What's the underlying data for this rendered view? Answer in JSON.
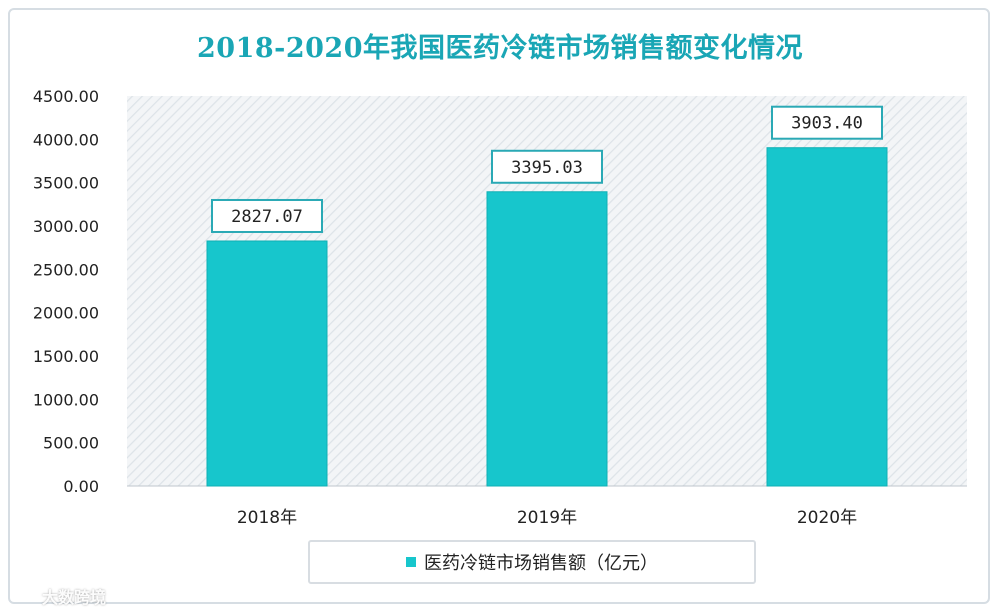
{
  "chart_data": {
    "type": "bar",
    "title": "2018-2020年我国医药冷链市场销售额变化情况",
    "categories": [
      "2018年",
      "2019年",
      "2020年"
    ],
    "series": [
      {
        "name": "医药冷链市场销售额（亿元）",
        "values": [
          2827.07,
          3395.03,
          3903.4
        ],
        "value_labels": [
          "2827.07",
          "3395.03",
          "3903.40"
        ]
      }
    ],
    "ylim": [
      0,
      4500
    ],
    "yticks": [
      0,
      500,
      1000,
      1500,
      2000,
      2500,
      3000,
      3500,
      4000,
      4500
    ],
    "ytick_labels": [
      "0.00",
      "500.00",
      "1000.00",
      "1500.00",
      "2000.00",
      "2500.00",
      "3000.00",
      "3500.00",
      "4000.00",
      "4500.00"
    ],
    "xlabel": "",
    "ylabel": "",
    "legend_position": "bottom-center",
    "grid": false
  },
  "legend": {
    "label": "医药冷链市场销售额（亿元）"
  },
  "watermark": {
    "text": "大数跨境"
  },
  "colors": {
    "bar": "#17c6cc",
    "bar_edge": "#0fb0b5",
    "title": "#1aa6b5",
    "plot_bg": "#f3f5f7",
    "hatch": "#dde3e8",
    "label_border": "#2aa9b5"
  }
}
